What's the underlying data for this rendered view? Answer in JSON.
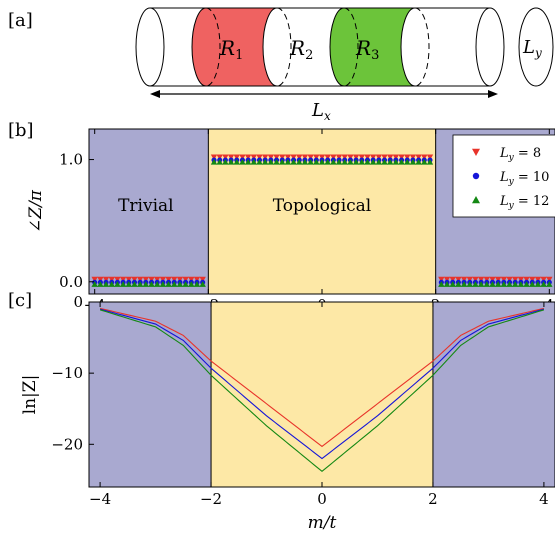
{
  "panel_labels": {
    "a": "[a]",
    "b": "[b]",
    "c": "[c]"
  },
  "schematic": {
    "regions": [
      {
        "label": "R",
        "sub": "1",
        "color": "#ef6261"
      },
      {
        "label": "R",
        "sub": "2",
        "color": "#ffffff"
      },
      {
        "label": "R",
        "sub": "3",
        "color": "#6cc43a"
      }
    ],
    "lx_label": "L",
    "lx_sub": "x",
    "ly_label": "L",
    "ly_sub": "y"
  },
  "colors": {
    "trivial": "#a9a9d0",
    "topological": "#fde8a6",
    "ly8": "#e8332a",
    "ly10": "#1515d8",
    "ly12": "#138813"
  },
  "chart_data": [
    {
      "type": "scatter",
      "ylabel": "∠Z/π",
      "xlim": [
        -4.1,
        4.1
      ],
      "ylim": [
        -0.1,
        1.25
      ],
      "x_ticks": [
        "−4",
        "−2",
        "0",
        "2",
        "4"
      ],
      "y_ticks": [
        "0.0",
        "1.0"
      ],
      "regions": [
        {
          "label": "Trivial",
          "x_range": [
            -4.1,
            -2
          ]
        },
        {
          "label": "Topological",
          "x_range": [
            -2,
            2
          ]
        },
        {
          "label": "Trivial",
          "x_range": [
            2,
            4.1
          ]
        }
      ],
      "series": [
        {
          "name": "L_y = 8",
          "label_main": "L",
          "label_sub": "y",
          "label_rest": " = 8",
          "marker": "triangle-down",
          "rule": "1.0 for |m/t| < 2, 0.0 otherwise"
        },
        {
          "name": "L_y = 10",
          "label_main": "L",
          "label_sub": "y",
          "label_rest": " = 10",
          "marker": "circle",
          "rule": "1.0 for |m/t| < 2, 0.0 otherwise"
        },
        {
          "name": "L_y = 12",
          "label_main": "L",
          "label_sub": "y",
          "label_rest": " = 12",
          "marker": "triangle-up",
          "rule": "1.0 for |m/t| < 2, 0.0 otherwise"
        }
      ],
      "legend": "top-right"
    },
    {
      "type": "line",
      "xlabel": "m/t",
      "ylabel": "ln|Z|",
      "xlim": [
        -4.2,
        4.2
      ],
      "ylim": [
        -26,
        0
      ],
      "x_ticks": [
        "−4",
        "−2",
        "0",
        "2",
        "4"
      ],
      "y_ticks": [
        "0",
        "−10",
        "−20"
      ],
      "series": [
        {
          "name": "L_y = 8",
          "points": [
            [
              -4,
              -0.9
            ],
            [
              -3,
              -2.7
            ],
            [
              -2.5,
              -4.7
            ],
            [
              -2,
              -8.3
            ],
            [
              -1,
              -14.3
            ],
            [
              0,
              -20.3
            ],
            [
              1,
              -14.3
            ],
            [
              2,
              -8.3
            ],
            [
              2.5,
              -4.7
            ],
            [
              3,
              -2.7
            ],
            [
              4,
              -0.9
            ]
          ]
        },
        {
          "name": "L_y = 10",
          "points": [
            [
              -4,
              -1.0
            ],
            [
              -3,
              -3.1
            ],
            [
              -2.5,
              -5.4
            ],
            [
              -2,
              -9.3
            ],
            [
              -1,
              -16.0
            ],
            [
              0,
              -22.0
            ],
            [
              1,
              -16.0
            ],
            [
              2,
              -9.3
            ],
            [
              2.5,
              -5.4
            ],
            [
              3,
              -3.1
            ],
            [
              4,
              -1.0
            ]
          ]
        },
        {
          "name": "L_y = 12",
          "points": [
            [
              -4,
              -1.1
            ],
            [
              -3,
              -3.5
            ],
            [
              -2.5,
              -6.1
            ],
            [
              -2,
              -10.3
            ],
            [
              -1,
              -17.4
            ],
            [
              0,
              -23.8
            ],
            [
              1,
              -17.4
            ],
            [
              2,
              -10.3
            ],
            [
              2.5,
              -6.1
            ],
            [
              3,
              -3.5
            ],
            [
              4,
              -1.1
            ]
          ]
        }
      ]
    }
  ]
}
